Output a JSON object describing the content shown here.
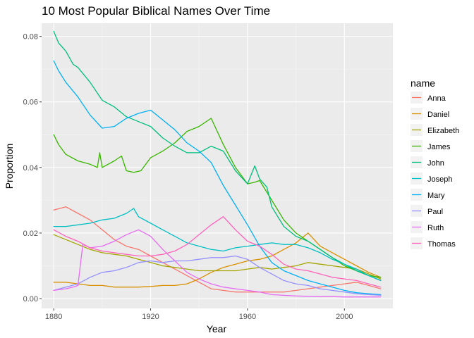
{
  "chart_data": {
    "type": "line",
    "title": "10 Most Popular Biblical Names Over Time",
    "xlabel": "Year",
    "ylabel": "Proportion",
    "xlim": [
      1875,
      2020
    ],
    "ylim": [
      -0.003,
      0.084
    ],
    "xticks": [
      1880,
      1920,
      1960,
      2000
    ],
    "yticks": [
      0.0,
      0.02,
      0.04,
      0.06,
      0.08
    ],
    "ytick_labels": [
      "0.00",
      "0.02",
      "0.04",
      "0.06",
      "0.08"
    ],
    "legend": {
      "title": "name",
      "position": "right"
    },
    "grid": true,
    "panel_background": "#ebebeb",
    "series": [
      {
        "name": "Anna",
        "color": "#f8766d",
        "x": [
          1880,
          1885,
          1890,
          1895,
          1900,
          1905,
          1910,
          1915,
          1920,
          1925,
          1930,
          1935,
          1940,
          1945,
          1950,
          1955,
          1960,
          1965,
          1970,
          1975,
          1980,
          1985,
          1990,
          1995,
          2000,
          2005,
          2010,
          2015
        ],
        "y": [
          0.027,
          0.028,
          0.026,
          0.024,
          0.021,
          0.018,
          0.016,
          0.015,
          0.013,
          0.011,
          0.009,
          0.007,
          0.005,
          0.003,
          0.0025,
          0.002,
          0.002,
          0.002,
          0.002,
          0.002,
          0.0025,
          0.003,
          0.0035,
          0.004,
          0.0045,
          0.005,
          0.004,
          0.003
        ]
      },
      {
        "name": "Daniel",
        "color": "#d89000",
        "x": [
          1880,
          1885,
          1890,
          1895,
          1900,
          1905,
          1910,
          1915,
          1920,
          1925,
          1930,
          1935,
          1940,
          1945,
          1950,
          1955,
          1960,
          1965,
          1970,
          1975,
          1980,
          1985,
          1990,
          1995,
          2000,
          2005,
          2010,
          2015
        ],
        "y": [
          0.005,
          0.005,
          0.0045,
          0.004,
          0.004,
          0.0035,
          0.0035,
          0.0035,
          0.0037,
          0.004,
          0.004,
          0.0045,
          0.006,
          0.008,
          0.0095,
          0.0105,
          0.0115,
          0.012,
          0.013,
          0.015,
          0.017,
          0.02,
          0.016,
          0.014,
          0.012,
          0.01,
          0.008,
          0.0065
        ]
      },
      {
        "name": "Elizabeth",
        "color": "#a3a500",
        "x": [
          1880,
          1885,
          1890,
          1895,
          1900,
          1905,
          1910,
          1915,
          1920,
          1925,
          1930,
          1935,
          1940,
          1945,
          1950,
          1955,
          1960,
          1965,
          1970,
          1975,
          1980,
          1985,
          1990,
          1995,
          2000,
          2005,
          2010,
          2015
        ],
        "y": [
          0.0195,
          0.018,
          0.0165,
          0.015,
          0.014,
          0.0135,
          0.013,
          0.012,
          0.011,
          0.01,
          0.0095,
          0.009,
          0.0085,
          0.0085,
          0.0085,
          0.0085,
          0.009,
          0.0095,
          0.009,
          0.0095,
          0.01,
          0.011,
          0.0105,
          0.01,
          0.0095,
          0.009,
          0.0075,
          0.006
        ]
      },
      {
        "name": "James",
        "color": "#39b600",
        "x": [
          1880,
          1882,
          1885,
          1890,
          1895,
          1898,
          1899,
          1900,
          1905,
          1908,
          1910,
          1913,
          1916,
          1920,
          1925,
          1930,
          1935,
          1940,
          1945,
          1950,
          1955,
          1960,
          1963,
          1965,
          1970,
          1975,
          1980,
          1985,
          1990,
          1995,
          2000,
          2005,
          2010,
          2015
        ],
        "y": [
          0.05,
          0.047,
          0.044,
          0.042,
          0.041,
          0.04,
          0.0445,
          0.04,
          0.042,
          0.0435,
          0.039,
          0.0385,
          0.039,
          0.043,
          0.045,
          0.0475,
          0.051,
          0.0525,
          0.055,
          0.047,
          0.04,
          0.035,
          0.0355,
          0.036,
          0.03,
          0.024,
          0.02,
          0.0175,
          0.015,
          0.0125,
          0.01,
          0.0085,
          0.007,
          0.0065
        ]
      },
      {
        "name": "John",
        "color": "#00bf7d",
        "x": [
          1880,
          1882,
          1885,
          1888,
          1890,
          1895,
          1900,
          1905,
          1910,
          1915,
          1920,
          1925,
          1930,
          1935,
          1940,
          1945,
          1950,
          1955,
          1960,
          1963,
          1965,
          1968,
          1970,
          1975,
          1980,
          1985,
          1990,
          1995,
          2000,
          2005,
          2010,
          2015
        ],
        "y": [
          0.0815,
          0.078,
          0.0755,
          0.0715,
          0.0705,
          0.066,
          0.0605,
          0.0585,
          0.0555,
          0.054,
          0.0525,
          0.049,
          0.0465,
          0.0445,
          0.0445,
          0.0465,
          0.045,
          0.039,
          0.035,
          0.0405,
          0.0365,
          0.034,
          0.028,
          0.022,
          0.019,
          0.0175,
          0.015,
          0.0125,
          0.0105,
          0.0085,
          0.007,
          0.0055
        ]
      },
      {
        "name": "Joseph",
        "color": "#00bfc4",
        "x": [
          1880,
          1885,
          1890,
          1895,
          1900,
          1905,
          1910,
          1913,
          1915,
          1920,
          1925,
          1930,
          1935,
          1940,
          1945,
          1950,
          1955,
          1960,
          1965,
          1970,
          1975,
          1980,
          1985,
          1990,
          1995,
          2000,
          2005,
          2010,
          2015
        ],
        "y": [
          0.022,
          0.022,
          0.0225,
          0.023,
          0.024,
          0.0245,
          0.026,
          0.0275,
          0.025,
          0.023,
          0.021,
          0.019,
          0.017,
          0.016,
          0.015,
          0.0145,
          0.0155,
          0.016,
          0.0165,
          0.017,
          0.0165,
          0.0165,
          0.0155,
          0.014,
          0.012,
          0.0105,
          0.009,
          0.007,
          0.0055
        ]
      },
      {
        "name": "Mary",
        "color": "#00b0f6",
        "x": [
          1880,
          1882,
          1885,
          1890,
          1895,
          1900,
          1905,
          1910,
          1915,
          1920,
          1925,
          1930,
          1935,
          1940,
          1945,
          1950,
          1955,
          1960,
          1965,
          1970,
          1975,
          1980,
          1985,
          1990,
          1995,
          2000,
          2005,
          2010,
          2015
        ],
        "y": [
          0.0725,
          0.0695,
          0.066,
          0.0615,
          0.056,
          0.052,
          0.0525,
          0.055,
          0.0565,
          0.0575,
          0.0545,
          0.0515,
          0.0475,
          0.045,
          0.0415,
          0.0345,
          0.0285,
          0.0225,
          0.016,
          0.011,
          0.0085,
          0.007,
          0.0055,
          0.0045,
          0.0035,
          0.0025,
          0.0018,
          0.0015,
          0.0012
        ]
      },
      {
        "name": "Paul",
        "color": "#9590ff",
        "x": [
          1880,
          1885,
          1890,
          1895,
          1900,
          1905,
          1910,
          1915,
          1920,
          1925,
          1930,
          1935,
          1940,
          1945,
          1950,
          1955,
          1960,
          1965,
          1970,
          1975,
          1980,
          1985,
          1990,
          1995,
          2000,
          2005,
          2010,
          2015
        ],
        "y": [
          0.0025,
          0.0035,
          0.0045,
          0.0065,
          0.008,
          0.0085,
          0.0095,
          0.011,
          0.0115,
          0.011,
          0.0115,
          0.0115,
          0.012,
          0.0125,
          0.0125,
          0.013,
          0.012,
          0.0095,
          0.0075,
          0.0055,
          0.0045,
          0.004,
          0.003,
          0.0025,
          0.002,
          0.0015,
          0.0012,
          0.001
        ]
      },
      {
        "name": "Ruth",
        "color": "#e76bf3",
        "x": [
          1880,
          1885,
          1888,
          1890,
          1892,
          1895,
          1900,
          1905,
          1910,
          1915,
          1920,
          1925,
          1930,
          1935,
          1940,
          1945,
          1950,
          1955,
          1960,
          1965,
          1970,
          1975,
          1980,
          1985,
          1990,
          1995,
          2000,
          2005,
          2010,
          2015
        ],
        "y": [
          0.0025,
          0.003,
          0.0035,
          0.004,
          0.0165,
          0.0155,
          0.016,
          0.0175,
          0.0195,
          0.021,
          0.019,
          0.015,
          0.0115,
          0.008,
          0.006,
          0.0045,
          0.0035,
          0.003,
          0.0025,
          0.002,
          0.0012,
          0.001,
          0.0008,
          0.0007,
          0.0006,
          0.0006,
          0.0005,
          0.0005,
          0.0005,
          0.0005
        ]
      },
      {
        "name": "Thomas",
        "color": "#ff62bc",
        "x": [
          1880,
          1885,
          1890,
          1895,
          1900,
          1905,
          1910,
          1915,
          1920,
          1925,
          1930,
          1935,
          1940,
          1945,
          1950,
          1955,
          1960,
          1965,
          1970,
          1975,
          1980,
          1985,
          1990,
          1995,
          2000,
          2005,
          2010,
          2015
        ],
        "y": [
          0.021,
          0.019,
          0.0175,
          0.0155,
          0.0145,
          0.014,
          0.0135,
          0.013,
          0.013,
          0.0135,
          0.0145,
          0.0165,
          0.0195,
          0.0225,
          0.025,
          0.021,
          0.0175,
          0.016,
          0.0135,
          0.0105,
          0.009,
          0.0085,
          0.0075,
          0.0065,
          0.006,
          0.0055,
          0.0045,
          0.0035
        ]
      }
    ]
  }
}
